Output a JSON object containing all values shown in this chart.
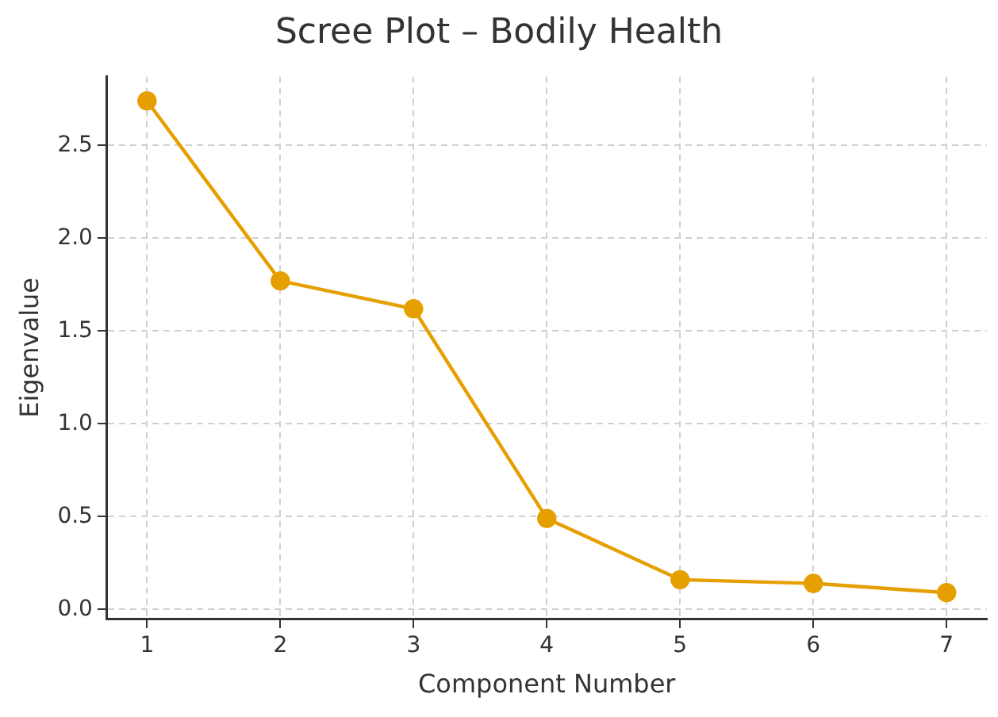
{
  "chart_data": {
    "type": "line",
    "title": "Scree Plot – Bodily Health",
    "xlabel": "Component Number",
    "ylabel": "Eigenvalue",
    "x": [
      1,
      2,
      3,
      4,
      5,
      6,
      7
    ],
    "series": [
      {
        "color": "#e69f00",
        "values": [
          2.74,
          1.77,
          1.62,
          0.49,
          0.16,
          0.14,
          0.09
        ]
      }
    ],
    "xlim": [
      0.7,
      7.3
    ],
    "xticks": [
      1,
      2,
      3,
      4,
      5,
      6,
      7
    ],
    "ylim": [
      -0.05,
      2.87
    ],
    "yticks": [
      {
        "value": 0,
        "label": "0.0"
      },
      0.5,
      {
        "value": 1,
        "label": "1.0"
      },
      1.5,
      {
        "value": 2,
        "label": "2.0"
      },
      2.5
    ],
    "grid": true,
    "marker": "circle",
    "line_style": "solid",
    "legend": false
  }
}
